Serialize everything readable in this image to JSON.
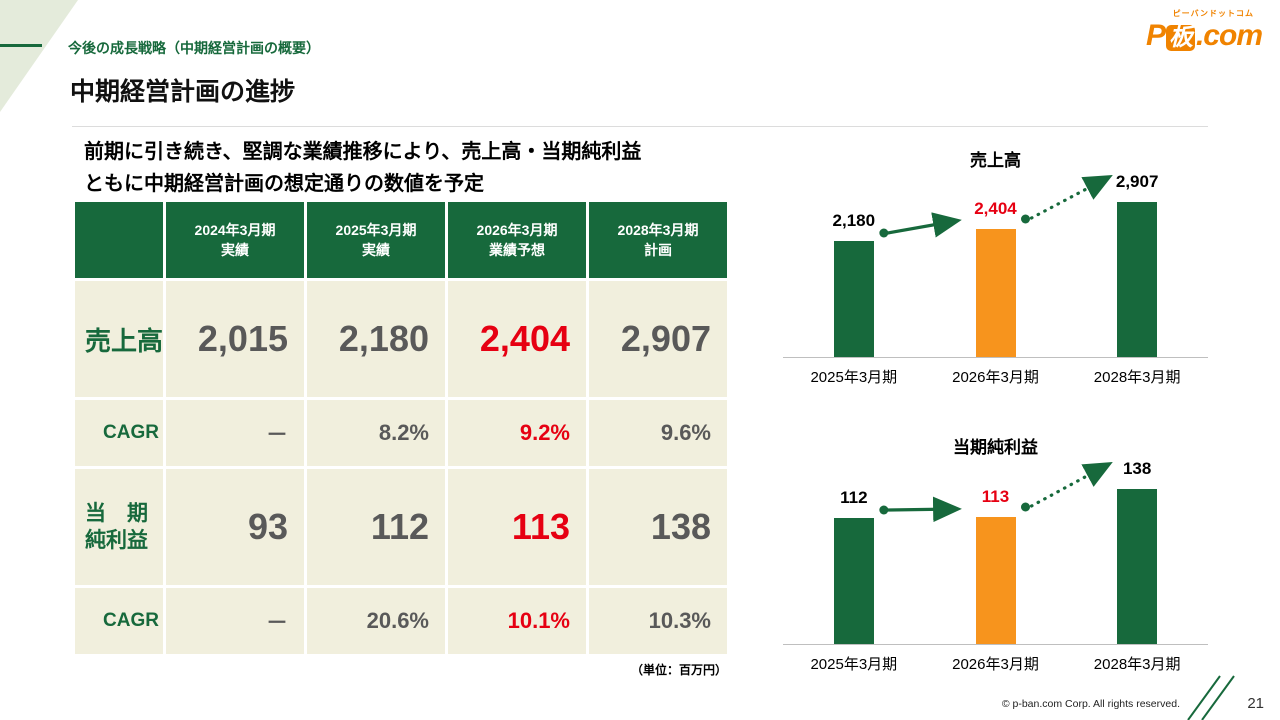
{
  "slide": {
    "subtitle": "今後の成長戦略（中期経営計画の概要）",
    "title": "中期経営計画の進捗",
    "lead_line1": "前期に引き続き、堅調な業績推移により、売上高・当期純利益",
    "lead_line2": "ともに中期経営計画の想定通りの数値を予定",
    "unit_note": "（単位：百万円）",
    "page_number": "21",
    "copyright": "©  p-ban.com Corp. All rights reserved."
  },
  "logo": {
    "tagline": "ピーバンドットコム",
    "p": "P",
    "ban": "板",
    "com": ".com"
  },
  "table": {
    "headers": [
      {
        "line1": "2024年3月期",
        "line2": "実績"
      },
      {
        "line1": "2025年3月期",
        "line2": "実績"
      },
      {
        "line1": "2026年3月期",
        "line2": "業績予想"
      },
      {
        "line1": "2028年3月期",
        "line2": "計画"
      }
    ],
    "rows": [
      {
        "label": "売上高",
        "values": [
          "2,015",
          "2,180",
          "2,404",
          "2,907"
        ]
      },
      {
        "label": "CAGR",
        "values": [
          "－",
          "8.2%",
          "9.2%",
          "9.6%"
        ]
      },
      {
        "label": "当　期\n純利益",
        "values": [
          "93",
          "112",
          "113",
          "138"
        ]
      },
      {
        "label": "CAGR",
        "values": [
          "－",
          "20.6%",
          "10.1%",
          "10.3%"
        ]
      }
    ]
  },
  "chart_data": [
    {
      "type": "bar",
      "title": "売上高",
      "categories": [
        "2025年3月期",
        "2026年3月期",
        "2028年3月期"
      ],
      "values": [
        2180,
        2404,
        2907
      ],
      "labels": [
        "2,180",
        "2,404",
        "2,907"
      ],
      "bar_colors": [
        "#17693c",
        "#f7941d",
        "#17693c"
      ],
      "label_colors": [
        "#000000",
        "#e60012",
        "#000000"
      ],
      "ylim": [
        0,
        2907
      ],
      "grid": false,
      "legend": false
    },
    {
      "type": "bar",
      "title": "当期純利益",
      "categories": [
        "2025年3月期",
        "2026年3月期",
        "2028年3月期"
      ],
      "values": [
        112,
        113,
        138
      ],
      "labels": [
        "112",
        "113",
        "138"
      ],
      "bar_colors": [
        "#17693c",
        "#f7941d",
        "#17693c"
      ],
      "label_colors": [
        "#000000",
        "#e60012",
        "#000000"
      ],
      "ylim": [
        0,
        138
      ],
      "grid": false,
      "legend": false
    }
  ],
  "colors": {
    "green": "#17693c",
    "orange": "#f7941d",
    "red": "#e60012",
    "beige": "#f1efdd",
    "logo_orange": "#f08300"
  }
}
